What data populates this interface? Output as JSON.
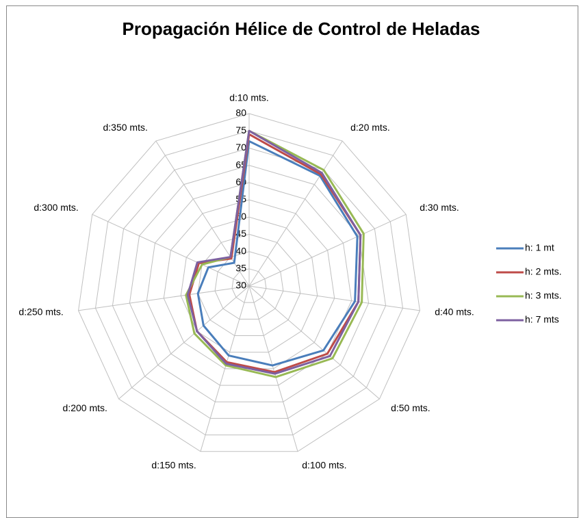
{
  "chart_data": {
    "type": "radar",
    "title": "Propagación Hélice de Control de Heladas",
    "categories": [
      "d:10 mts.",
      "d:20 mts.",
      "d:30 mts.",
      "d:40 mts.",
      "d:50 mts.",
      "d:100 mts.",
      "d:150 mts.",
      "d:200 mts.",
      "d:250 mts.",
      "d:300 mts.",
      "d:350 mts."
    ],
    "series": [
      {
        "name": "h: 1 mt",
        "color": "#4a7ebb",
        "values": [
          72,
          68,
          64.5,
          61,
          58.5,
          54,
          51,
          47.5,
          45,
          43,
          38
        ]
      },
      {
        "name": "h: 2 mts.",
        "color": "#be4b48",
        "values": [
          74,
          68.5,
          65.5,
          62,
          60,
          56,
          53,
          50,
          47.5,
          46,
          39.5
        ]
      },
      {
        "name": "h: 3 mts.",
        "color": "#98b954",
        "values": [
          75,
          70,
          66.5,
          63,
          62,
          57.5,
          54,
          51,
          48.5,
          45,
          40
        ]
      },
      {
        "name": "h: 7 mts",
        "color": "#7d60a0",
        "values": [
          75,
          69,
          65.5,
          62,
          61,
          56.5,
          53.5,
          50,
          48,
          46.5,
          40
        ]
      }
    ],
    "ylim": [
      30,
      80
    ],
    "yticks": [
      30,
      35,
      40,
      45,
      50,
      55,
      60,
      65,
      70,
      75,
      80
    ],
    "grid": true,
    "legend": "right"
  }
}
